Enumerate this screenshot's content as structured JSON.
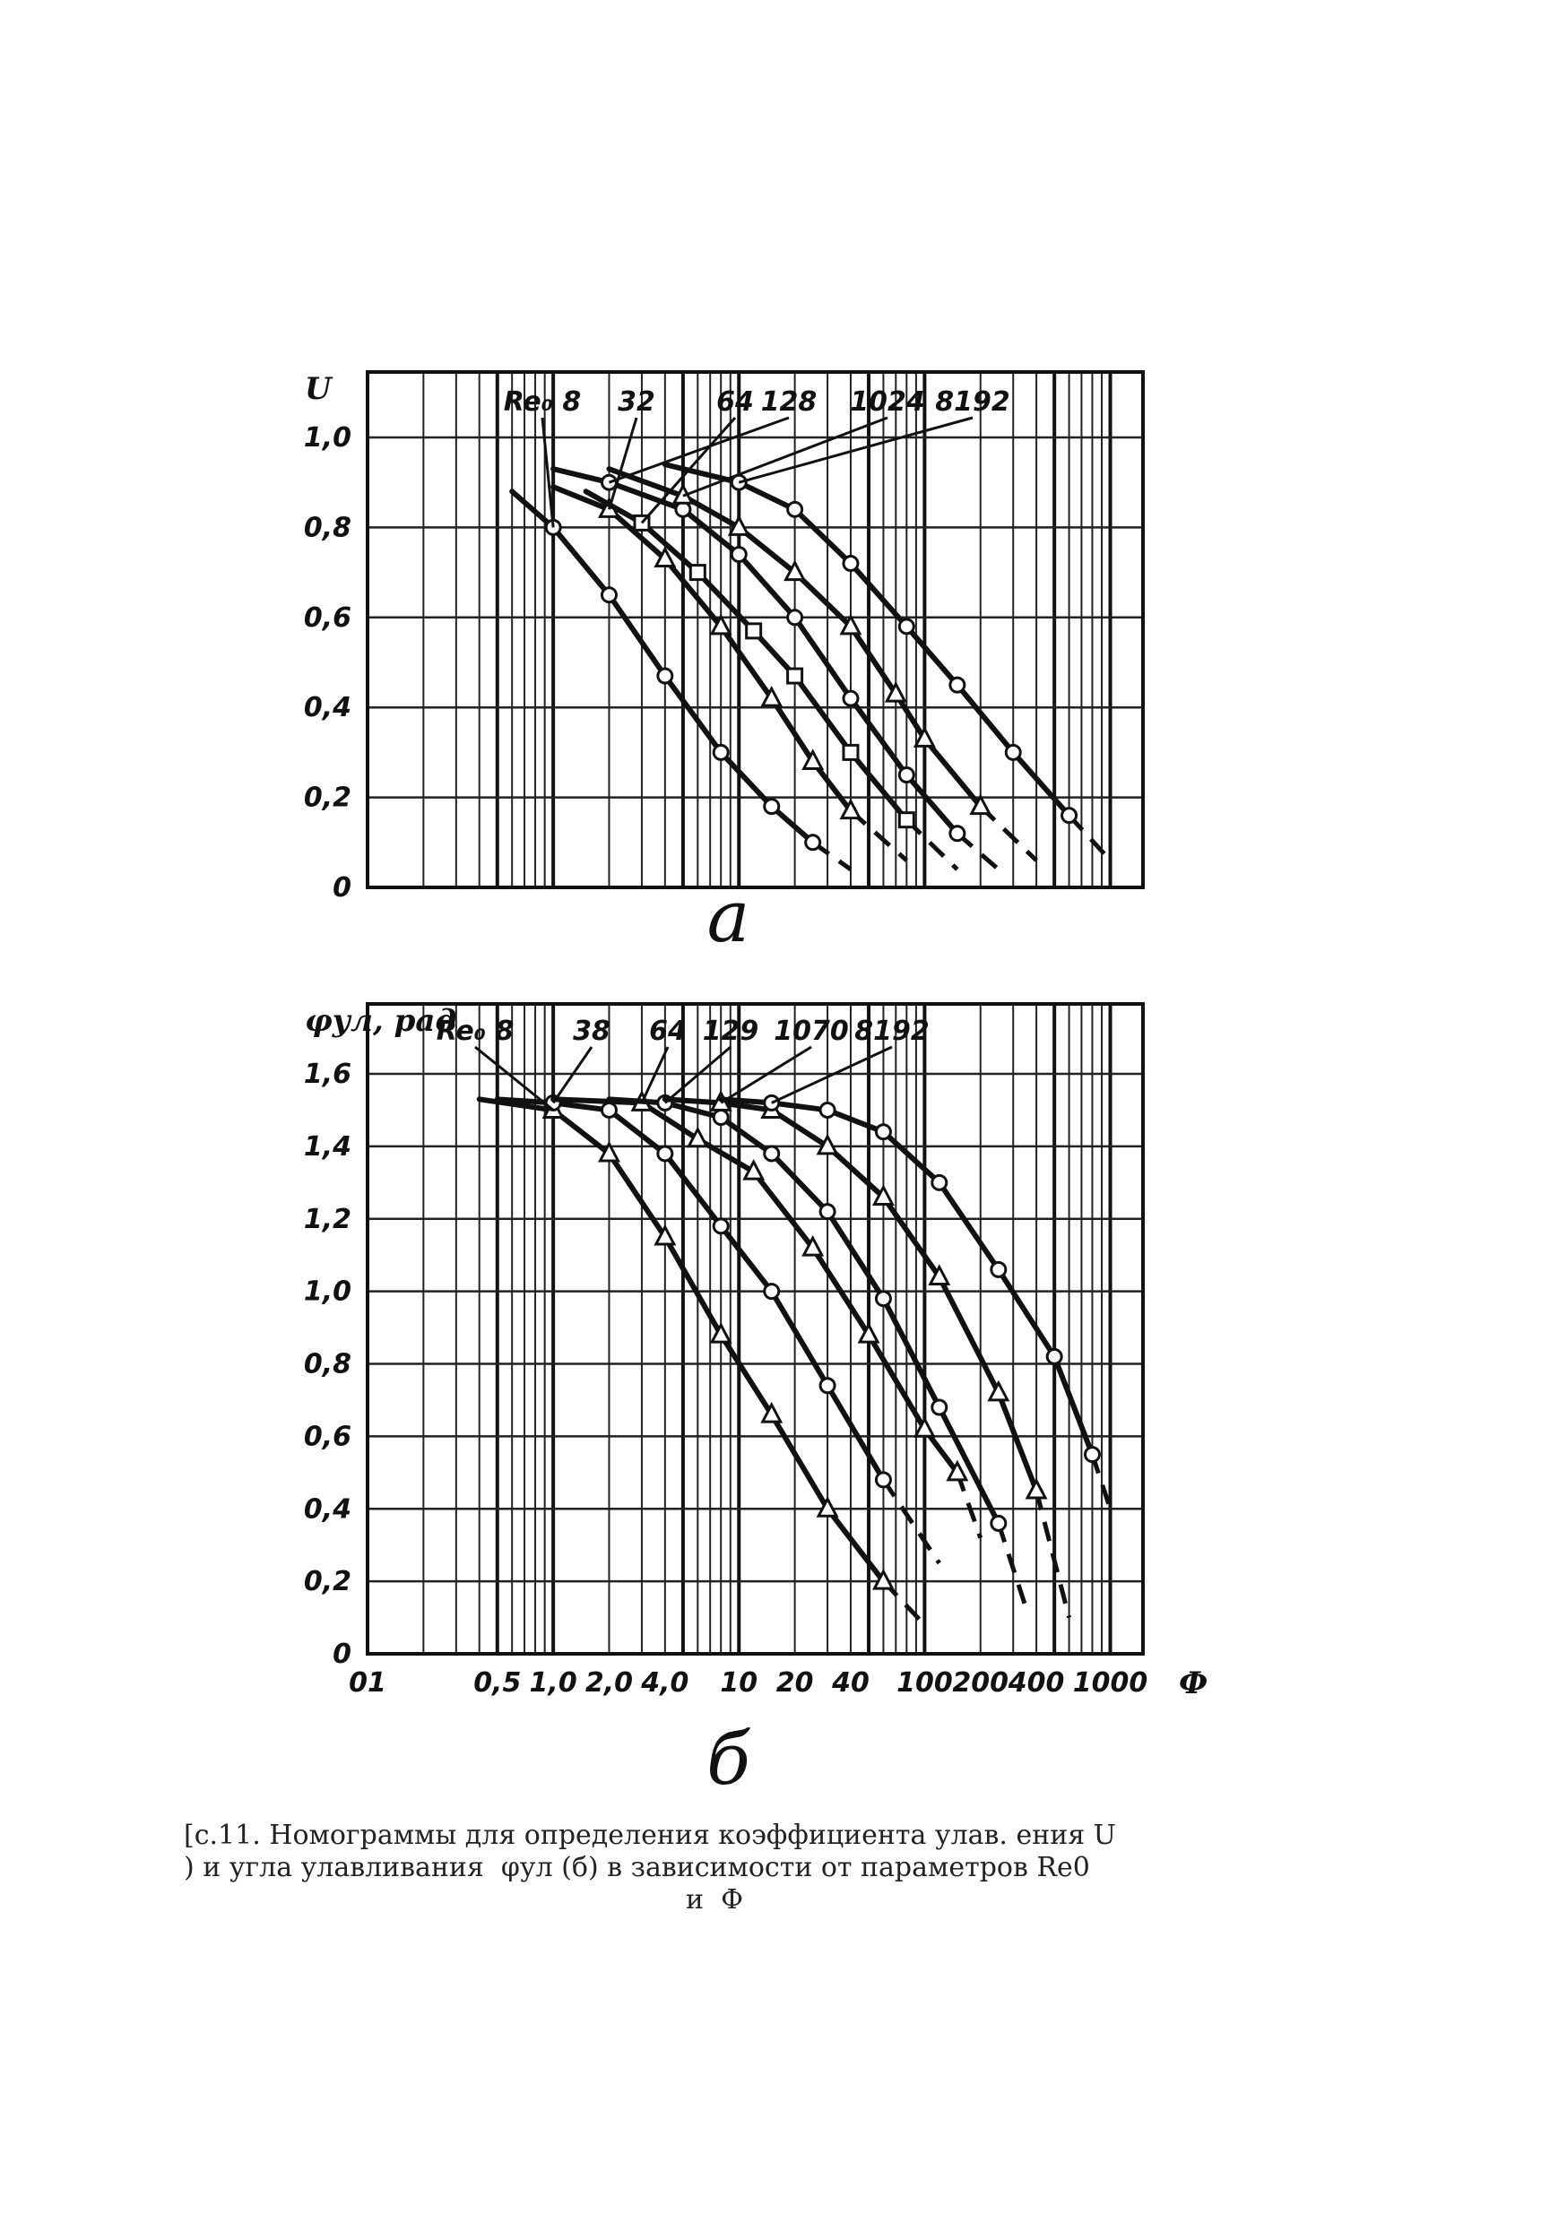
{
  "caption": {
    "line1": "[с.11. Номограммы для определения коэффициента улав. ения U",
    "line2": ") и угла улавливания  φул (б) в зависимости от параметров Re0",
    "line3": "и  Ф"
  },
  "chart_data": [
    {
      "type": "line",
      "panel_label": "а",
      "ylabel": "U",
      "x_scale": "log",
      "xlim": [
        0.1,
        1500
      ],
      "ylim": [
        0,
        1.0
      ],
      "y_ticks": [
        "1,0",
        "0,8",
        "0,6",
        "0,4",
        "0,2",
        "0"
      ],
      "grid": true,
      "series_labels": [
        "Re₀ 8",
        "32",
        "64",
        "128",
        "1024",
        "8192"
      ],
      "series": [
        {
          "name": "8",
          "x": [
            0.6,
            1.0,
            2.0,
            4.0,
            8.0,
            15,
            25,
            40
          ],
          "y": [
            0.88,
            0.8,
            0.65,
            0.47,
            0.3,
            0.18,
            0.1,
            0.04
          ]
        },
        {
          "name": "32",
          "x": [
            1.0,
            2.0,
            4.0,
            8.0,
            15,
            25,
            40,
            80
          ],
          "y": [
            0.89,
            0.84,
            0.73,
            0.58,
            0.42,
            0.28,
            0.17,
            0.06
          ]
        },
        {
          "name": "64",
          "x": [
            1.5,
            3.0,
            6.0,
            12,
            20,
            40,
            80,
            150
          ],
          "y": [
            0.88,
            0.81,
            0.7,
            0.57,
            0.47,
            0.3,
            0.15,
            0.04
          ]
        },
        {
          "name": "128",
          "x": [
            1.0,
            2.0,
            5.0,
            10,
            20,
            40,
            80,
            150,
            250
          ],
          "y": [
            0.93,
            0.9,
            0.84,
            0.74,
            0.6,
            0.42,
            0.25,
            0.12,
            0.04
          ]
        },
        {
          "name": "1024",
          "x": [
            2.0,
            5.0,
            10,
            20,
            40,
            70,
            100,
            200,
            400
          ],
          "y": [
            0.93,
            0.87,
            0.8,
            0.7,
            0.58,
            0.43,
            0.33,
            0.18,
            0.06
          ]
        },
        {
          "name": "8192",
          "x": [
            4.0,
            10,
            20,
            40,
            80,
            150,
            300,
            600,
            1000
          ],
          "y": [
            0.94,
            0.9,
            0.84,
            0.72,
            0.58,
            0.45,
            0.3,
            0.16,
            0.06
          ]
        }
      ]
    },
    {
      "type": "line",
      "panel_label": "б",
      "ylabel": "φул, рад",
      "xlabel": "Ф",
      "x_scale": "log",
      "xlim": [
        0.1,
        1500
      ],
      "ylim": [
        0,
        1.6
      ],
      "x_ticks": [
        "01",
        "0,5",
        "1,0",
        "2,0",
        "4,0",
        "10",
        "20",
        "40",
        "100",
        "200",
        "400",
        "1000"
      ],
      "y_ticks": [
        "1,6",
        "1,4",
        "1,2",
        "1,0",
        "0,8",
        "0,6",
        "0,4",
        "0,2",
        "0"
      ],
      "grid": true,
      "series_labels": [
        "Re₀ 8",
        "38",
        "64",
        "129",
        "1070",
        "8192"
      ],
      "series": [
        {
          "name": "8",
          "x": [
            0.4,
            1.0,
            2.0,
            4.0,
            8.0,
            15,
            30,
            60,
            100
          ],
          "y": [
            1.53,
            1.5,
            1.38,
            1.15,
            0.88,
            0.66,
            0.4,
            0.2,
            0.08
          ]
        },
        {
          "name": "38",
          "x": [
            0.5,
            1.0,
            2.0,
            4.0,
            8.0,
            15,
            30,
            60,
            120
          ],
          "y": [
            1.53,
            1.52,
            1.5,
            1.38,
            1.18,
            1.0,
            0.74,
            0.48,
            0.25
          ]
        },
        {
          "name": "64",
          "x": [
            1.0,
            3.0,
            6.0,
            12,
            25,
            50,
            100,
            150,
            200
          ],
          "y": [
            1.53,
            1.52,
            1.42,
            1.33,
            1.12,
            0.88,
            0.62,
            0.5,
            0.32
          ]
        },
        {
          "name": "129",
          "x": [
            2.0,
            4.0,
            8.0,
            15,
            30,
            60,
            120,
            250,
            350
          ],
          "y": [
            1.53,
            1.52,
            1.48,
            1.38,
            1.22,
            0.98,
            0.68,
            0.36,
            0.13
          ]
        },
        {
          "name": "1070",
          "x": [
            4.0,
            8.0,
            15,
            30,
            60,
            120,
            250,
            400,
            600
          ],
          "y": [
            1.53,
            1.52,
            1.5,
            1.4,
            1.26,
            1.04,
            0.72,
            0.45,
            0.1
          ]
        },
        {
          "name": "8192",
          "x": [
            8.0,
            15,
            30,
            60,
            120,
            250,
            500,
            800,
            1000
          ],
          "y": [
            1.53,
            1.52,
            1.5,
            1.44,
            1.3,
            1.06,
            0.82,
            0.55,
            0.4
          ]
        }
      ]
    }
  ]
}
